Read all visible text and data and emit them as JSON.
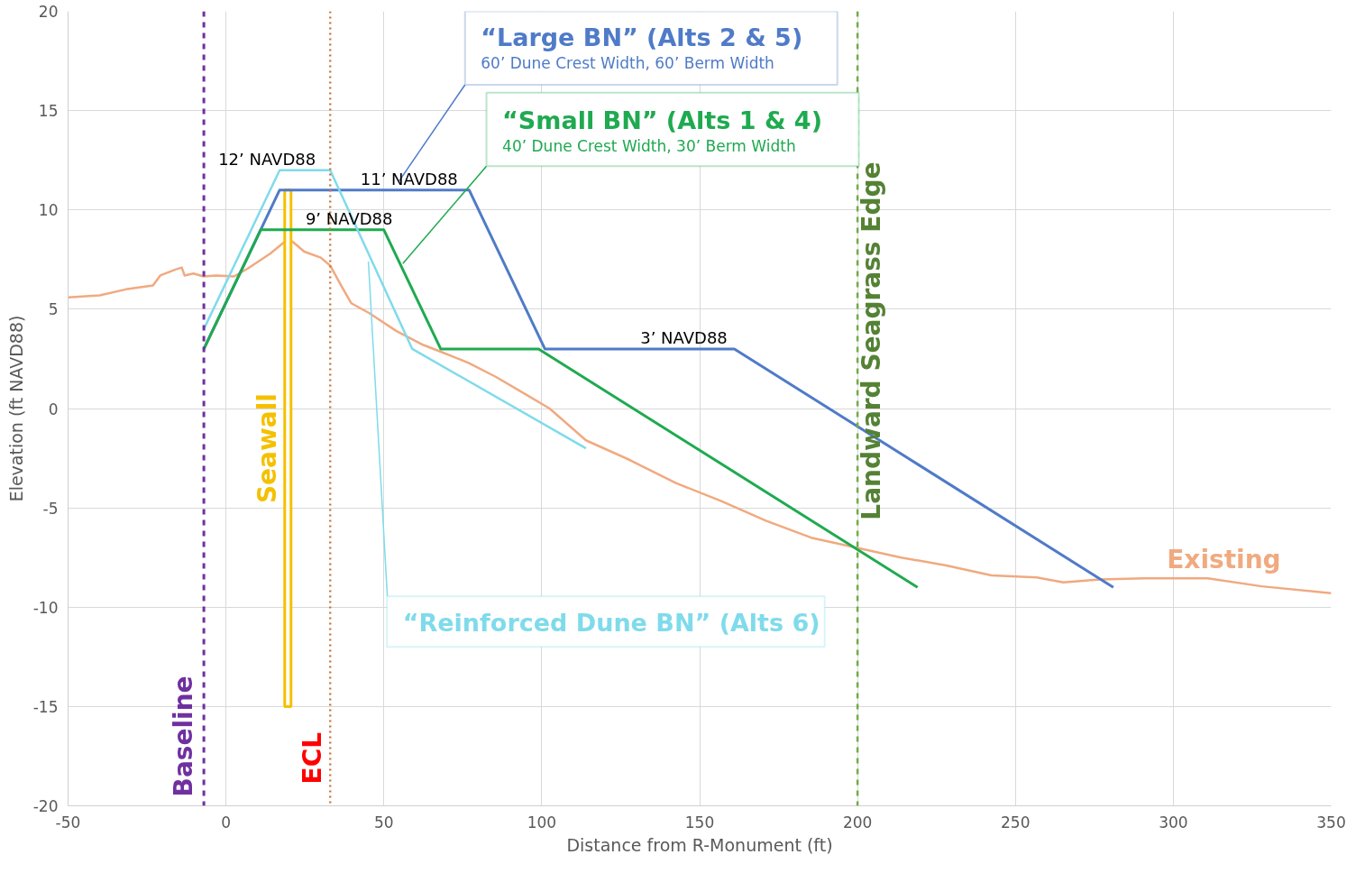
{
  "chart_data": {
    "type": "line",
    "xlabel": "Distance from R-Monument (ft)",
    "ylabel": "Elevation (ft NAVD88)",
    "xlim": [
      -50,
      350
    ],
    "ylim": [
      -20,
      20
    ],
    "xticks": [
      -50,
      0,
      50,
      100,
      150,
      200,
      250,
      300,
      350
    ],
    "yticks": [
      -20,
      -15,
      -10,
      -5,
      0,
      5,
      10,
      15,
      20
    ],
    "grid": true,
    "legend": false,
    "marker": "none",
    "line_style": "solid",
    "series": [
      {
        "name": "Existing",
        "color": "#f0aa80",
        "x": [
          -50,
          -40,
          -31.7,
          -23.1,
          -20.8,
          -16,
          -14,
          -13.1,
          -10.3,
          -7.1,
          -3.1,
          2.6,
          6.9,
          14,
          18.6,
          21.1,
          24.8,
          30,
          33,
          36.8,
          39.7,
          45.4,
          54,
          62.5,
          68.2,
          76.8,
          85.4,
          94,
          102.5,
          114,
          128,
          142.5,
          156.7,
          171,
          185.3,
          199.6,
          213.8,
          228.1,
          242.4,
          256.7,
          265.2,
          276.7,
          290.9,
          310.9,
          328,
          350
        ],
        "values": [
          5.6,
          5.7,
          6.0,
          6.2,
          6.7,
          7.0,
          7.1,
          6.7,
          6.8,
          6.65,
          6.7,
          6.65,
          7.05,
          7.8,
          8.4,
          8.4,
          7.9,
          7.6,
          7.2,
          6.1,
          5.3,
          4.8,
          3.9,
          3.2,
          2.85,
          2.3,
          1.6,
          0.8,
          0.0,
          -1.6,
          -2.6,
          -3.75,
          -4.65,
          -5.65,
          -6.5,
          -7.0,
          -7.5,
          -7.9,
          -8.4,
          -8.5,
          -8.75,
          -8.6,
          -8.55,
          -8.55,
          -8.95,
          -9.3
        ]
      },
      {
        "name": "Seawall",
        "type": "bar",
        "color": "#f5c000",
        "x": [
          19.6
        ],
        "base": [
          -15
        ],
        "values": [
          26
        ]
      },
      {
        "name": "“Large BN” (Alts 2 & 5)",
        "color": "#4f7bc8",
        "x": [
          -7,
          17,
          77,
          101,
          161,
          281
        ],
        "values": [
          3,
          11,
          11,
          3,
          3,
          -9
        ]
      },
      {
        "name": "“Small BN” (Alts 1 & 4)",
        "color": "#1faa50",
        "x": [
          -7,
          11,
          50,
          68,
          99,
          219
        ],
        "values": [
          3,
          9,
          9,
          3,
          3,
          -9
        ]
      },
      {
        "name": "“Reinforced Dune BN” (Alts 6)",
        "color": "#7fdbeb",
        "x": [
          -7,
          17,
          33,
          59,
          114
        ],
        "values": [
          4,
          12,
          12,
          3,
          -2
        ]
      }
    ],
    "ref_lines": [
      {
        "axis": "x",
        "value": -7,
        "label": "Baseline",
        "color": "#7030a0",
        "line_style": "dashed"
      },
      {
        "axis": "x",
        "value": 33,
        "label": "ECL",
        "color": "#c87941",
        "line_style": "dotted"
      },
      {
        "axis": "x",
        "value": 200,
        "label": "Landward Seagrass Edge",
        "color": "#70ad47",
        "line_style": "dashed"
      }
    ],
    "annotations": [
      "12’ NAVD88",
      "11’ NAVD88",
      "9’ NAVD88",
      "3’ NAVD88",
      "60’ Dune Crest Width, 60’ Berm Width",
      {
        "text": "40’ Dune Crest Width, 30’ Berm Width",
        "x": 56,
        "y": 7.3
      }
    ]
  }
}
